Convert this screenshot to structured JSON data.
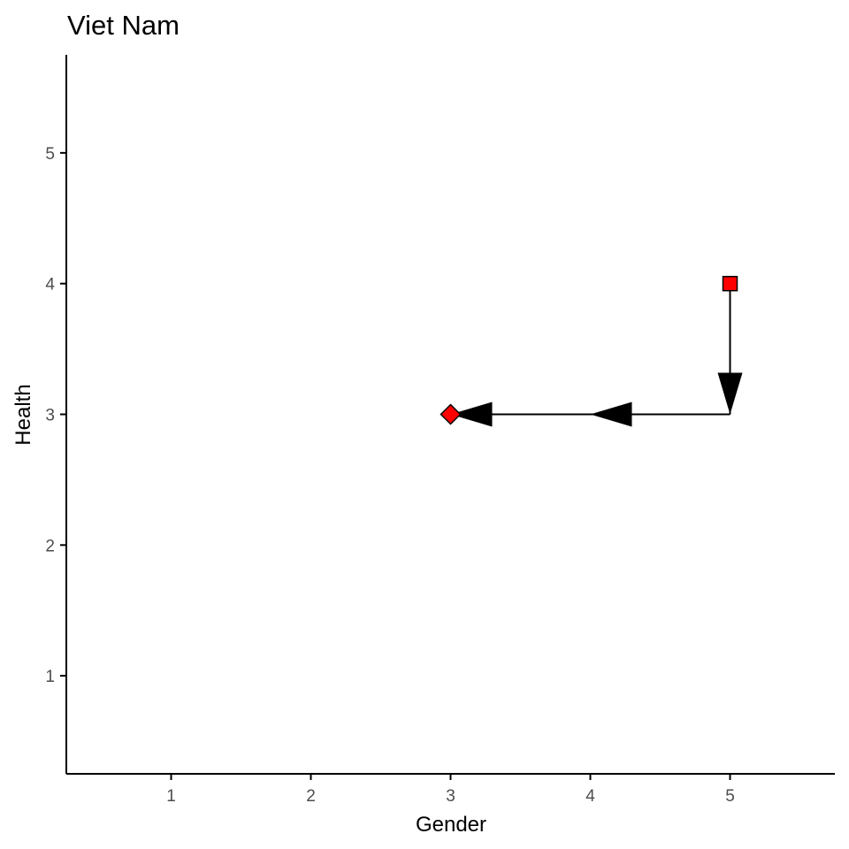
{
  "chart_data": {
    "type": "scatter",
    "title": "Viet Nam",
    "xlabel": "Gender",
    "ylabel": "Health",
    "xlim": [
      0.25,
      5.75
    ],
    "ylim": [
      0.25,
      5.75
    ],
    "xticks": [
      1,
      2,
      3,
      4,
      5
    ],
    "yticks": [
      1,
      2,
      3,
      4,
      5
    ],
    "grid": false,
    "points": [
      {
        "x": 5,
        "y": 4,
        "shape": "square"
      },
      {
        "x": 3,
        "y": 3,
        "shape": "diamond"
      }
    ],
    "path": [
      {
        "x": 5,
        "y": 4
      },
      {
        "x": 5,
        "y": 3
      },
      {
        "x": 3,
        "y": 3
      }
    ],
    "colors": {
      "point_fill": "#ff0000",
      "point_stroke": "#000000",
      "line": "#000000",
      "axis": "#000000",
      "tick_label": "#4d4d4d"
    }
  }
}
